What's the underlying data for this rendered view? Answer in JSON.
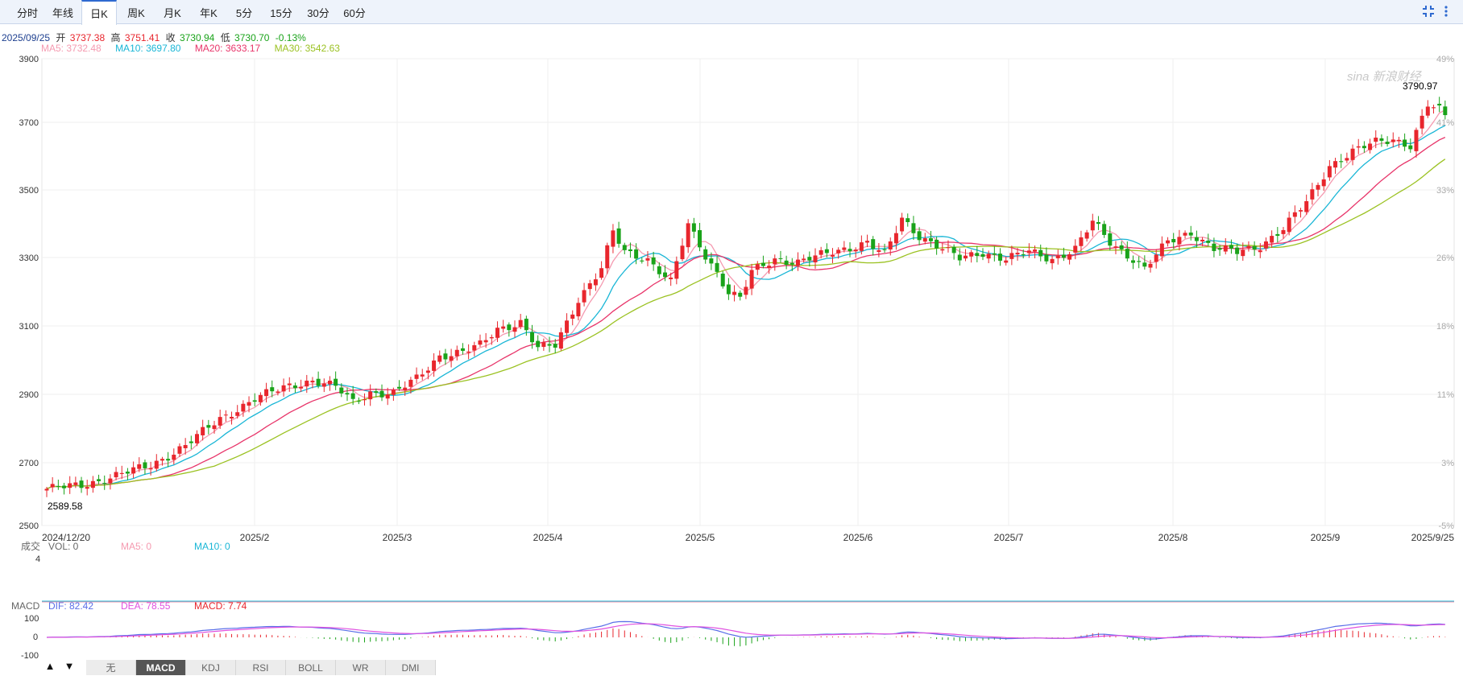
{
  "tabs": [
    {
      "label": "分时",
      "active": false
    },
    {
      "label": "年线",
      "active": false
    },
    {
      "label": "日K",
      "active": true
    },
    {
      "label": "周K",
      "active": false
    },
    {
      "label": "月K",
      "active": false
    },
    {
      "label": "年K",
      "active": false
    },
    {
      "label": "5分",
      "active": false
    },
    {
      "label": "15分",
      "active": false
    },
    {
      "label": "30分",
      "active": false
    },
    {
      "label": "60分",
      "active": false
    }
  ],
  "toolbar": {
    "collapse_icon": "fullscreen-exit-icon",
    "more_icon": "more-vertical-icon"
  },
  "quote": {
    "date": "2025/09/25",
    "open_label": "开",
    "open": "3737.38",
    "high_label": "高",
    "high": "3751.41",
    "close_label": "收",
    "close": "3730.94",
    "low_label": "低",
    "low": "3730.70",
    "change": "-0.13%"
  },
  "ma_legend": {
    "ma5": "MA5: 3732.48",
    "ma10": "MA10: 3697.80",
    "ma20": "MA20: 3633.17",
    "ma30": "MA30: 3542.63"
  },
  "colors": {
    "up": "#e8262d",
    "down": "#1aa31a",
    "ma5": "#f59ab0",
    "ma10": "#19b6d6",
    "ma20": "#e8356a",
    "ma30": "#9bc222",
    "dif": "#5a6ee8",
    "dea": "#e050e0"
  },
  "watermark": "sina 新浪财经",
  "volume_panel": {
    "label": "成交",
    "vol": "VOL: 0",
    "ma5": "MA5: 0",
    "ma10": "MA10: 0",
    "axis_max": "4"
  },
  "macd_panel": {
    "label": "MACD",
    "dif": "DIF: 82.42",
    "dea": "DEA: 78.55",
    "macd": "MACD: 7.74",
    "axis_top": "100",
    "axis_zero": "0",
    "axis_bottom": "-100"
  },
  "bottom": {
    "up_arrow": "▲",
    "down_arrow": "▼",
    "indicators": [
      "无",
      "MACD",
      "KDJ",
      "RSI",
      "BOLL",
      "WR",
      "DMI"
    ],
    "active_indicator": "MACD"
  },
  "chart_data": {
    "type": "candlestick",
    "y_ticks": [
      "3900",
      "3700",
      "3500",
      "3300",
      "3100",
      "2900",
      "2700",
      "2500"
    ],
    "y_right_ticks": [
      "49%",
      "41%",
      "33%",
      "26%",
      "18%",
      "11%",
      "3%",
      "-5%"
    ],
    "x_ticks": [
      "2024/12/20",
      "2025/2",
      "2025/3",
      "2025/4",
      "2025/5",
      "2025/6",
      "2025/7",
      "2025/8",
      "2025/9",
      "2025/9/25"
    ],
    "ylim": [
      2500,
      3900
    ],
    "max_label": "3790.97",
    "min_label": "2589.58",
    "close_anchors": [
      [
        0,
        2610
      ],
      [
        6,
        2620
      ],
      [
        12,
        2650
      ],
      [
        18,
        2680
      ],
      [
        24,
        2740
      ],
      [
        30,
        2820
      ],
      [
        36,
        2880
      ],
      [
        42,
        2920
      ],
      [
        46,
        2935
      ],
      [
        50,
        2915
      ],
      [
        53,
        2870
      ],
      [
        56,
        2900
      ],
      [
        60,
        2895
      ],
      [
        64,
        2940
      ],
      [
        68,
        3010
      ],
      [
        72,
        3020
      ],
      [
        75,
        3040
      ],
      [
        78,
        3090
      ],
      [
        82,
        3110
      ],
      [
        85,
        3030
      ],
      [
        88,
        3040
      ],
      [
        92,
        3180
      ],
      [
        96,
        3270
      ],
      [
        98,
        3380
      ],
      [
        100,
        3320
      ],
      [
        104,
        3300
      ],
      [
        108,
        3230
      ],
      [
        111,
        3400
      ],
      [
        114,
        3310
      ],
      [
        116,
        3260
      ],
      [
        118,
        3200
      ],
      [
        120,
        3180
      ],
      [
        122,
        3260
      ],
      [
        126,
        3300
      ],
      [
        130,
        3290
      ],
      [
        134,
        3310
      ],
      [
        138,
        3330
      ],
      [
        142,
        3350
      ],
      [
        145,
        3310
      ],
      [
        148,
        3420
      ],
      [
        151,
        3370
      ],
      [
        155,
        3330
      ],
      [
        158,
        3300
      ],
      [
        162,
        3320
      ],
      [
        166,
        3300
      ],
      [
        170,
        3320
      ],
      [
        174,
        3300
      ],
      [
        178,
        3330
      ],
      [
        181,
        3410
      ],
      [
        184,
        3350
      ],
      [
        188,
        3300
      ],
      [
        190,
        3270
      ],
      [
        194,
        3350
      ],
      [
        198,
        3380
      ],
      [
        202,
        3330
      ],
      [
        206,
        3320
      ],
      [
        210,
        3340
      ],
      [
        214,
        3390
      ],
      [
        218,
        3470
      ],
      [
        222,
        3580
      ],
      [
        226,
        3620
      ],
      [
        230,
        3650
      ],
      [
        233,
        3660
      ],
      [
        236,
        3640
      ],
      [
        239,
        3760
      ],
      [
        241,
        3745
      ],
      [
        242,
        3731
      ]
    ],
    "volume": {
      "vol": 0,
      "ma5": 0,
      "ma10": 0
    },
    "macd": {
      "dif": 82.42,
      "dea": 78.55,
      "macd": 7.74
    }
  }
}
